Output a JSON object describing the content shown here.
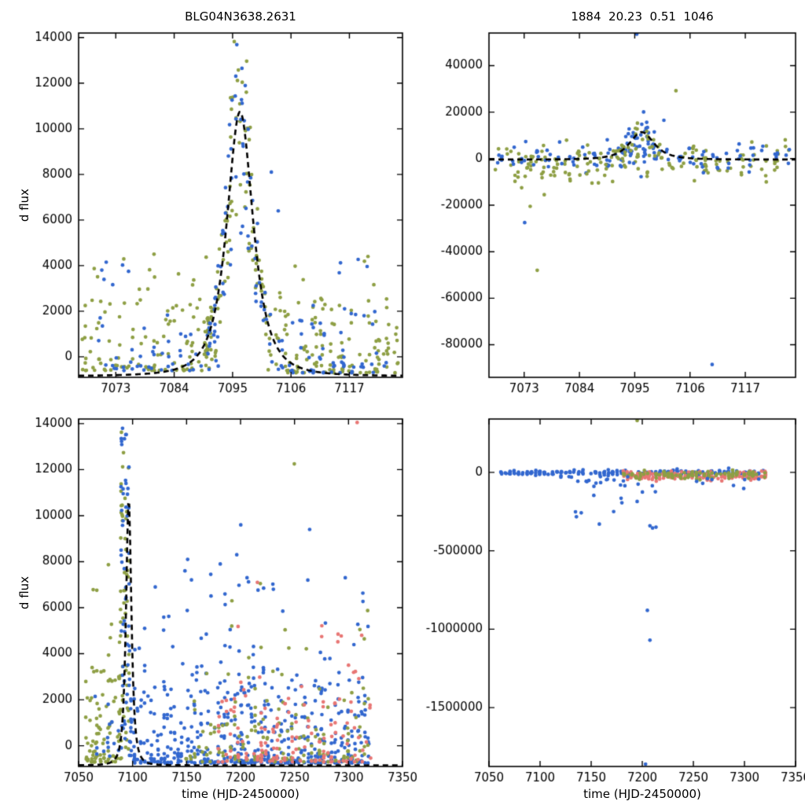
{
  "colors": {
    "green": "#8e9f44",
    "blue": "#3267cf",
    "red": "#e87674",
    "model": "#000000",
    "axis": "#000000",
    "background": "#ffffff"
  },
  "chart_data": [
    {
      "id": "main-zoom",
      "type": "scatter",
      "title": "BLG04N3638.2631",
      "xlabel": "",
      "ylabel": "d flux",
      "xlim": [
        7066,
        7127
      ],
      "ylim": [
        -900,
        14200
      ],
      "xticks": [
        7073,
        7084,
        7095,
        7106,
        7117
      ],
      "yticks": [
        0,
        2000,
        4000,
        6000,
        8000,
        10000,
        12000,
        14000
      ],
      "legend": "none",
      "grid": false,
      "model_curve": {
        "t0": 7096.4,
        "base": -850,
        "amplitude": 11600,
        "gamma": 3.8,
        "power": 1.5,
        "style": "dashed"
      },
      "clusters": [
        {
          "color": "green",
          "n": 110,
          "x": [
            7066.5,
            7092.5
          ],
          "nights": 22,
          "dist": "exp",
          "y": [
            -600,
            2500
          ],
          "k": 2.2
        },
        {
          "color": "green",
          "n": 12,
          "x": [
            7067,
            7091
          ],
          "dist": "uniform",
          "y": [
            2500,
            4600
          ]
        },
        {
          "color": "blue",
          "n": 48,
          "x": [
            7069,
            7092.5
          ],
          "nights": 18,
          "dist": "exp",
          "y": [
            -600,
            2100
          ],
          "k": 2.4
        },
        {
          "color": "blue",
          "n": 5,
          "x": [
            7070,
            7076
          ],
          "dist": "uniform",
          "y": [
            1800,
            4300
          ]
        },
        {
          "color": "green",
          "n": 95,
          "x": [
            7089.5,
            7101.5
          ],
          "nights": 10,
          "dist": "model",
          "s": [
            0.55,
            1.45
          ],
          "noise": 1500
        },
        {
          "color": "blue",
          "n": 72,
          "x": [
            7090,
            7101.5
          ],
          "nights": 9,
          "dist": "model",
          "s": [
            0.5,
            1.4
          ],
          "noise": 1500
        },
        {
          "color": "green",
          "n": 125,
          "x": [
            7101,
            7126.5
          ],
          "nights": 15,
          "dist": "exp",
          "y": [
            -700,
            2500
          ],
          "k": 2.0
        },
        {
          "color": "green",
          "n": 9,
          "x": [
            7102,
            7126
          ],
          "dist": "uniform",
          "y": [
            2500,
            4400
          ]
        },
        {
          "color": "blue",
          "n": 65,
          "x": [
            7101,
            7126.5
          ],
          "nights": 13,
          "dist": "exp",
          "y": [
            -700,
            2400
          ],
          "k": 2.2
        },
        {
          "color": "blue",
          "n": 4,
          "x": [
            7115,
            7124
          ],
          "dist": "uniform",
          "y": [
            3400,
            4600
          ]
        }
      ],
      "points": [
        {
          "color": "blue",
          "pts": [
            [
              7102.3,
              8100
            ],
            [
              7103.6,
              6400
            ],
            [
              7071.2,
              4150
            ]
          ]
        },
        {
          "color": "green",
          "pts": [
            [
              7120.5,
              4400
            ],
            [
              7080.2,
              4500
            ]
          ]
        }
      ]
    },
    {
      "id": "residual-zoom",
      "type": "scatter",
      "title": "1884  20.23  0.51  1046",
      "xlabel": "",
      "ylabel": "",
      "xlim": [
        7066,
        7127
      ],
      "ylim": [
        -94000,
        54000
      ],
      "xticks": [
        7073,
        7084,
        7095,
        7106,
        7117
      ],
      "yticks": [
        -80000,
        -60000,
        -40000,
        -20000,
        0,
        20000,
        40000
      ],
      "legend": "none",
      "grid": false,
      "model_curve": {
        "t0": 7096.4,
        "base": -400,
        "amplitude": 11800,
        "gamma": 3.8,
        "power": 1.5,
        "style": "dashed"
      },
      "clusters": [
        {
          "color": "green",
          "n": 135,
          "x": [
            7066.5,
            7126.5
          ],
          "nights": 26,
          "dist": "gauss",
          "mean": -800,
          "sd": 3200
        },
        {
          "color": "blue",
          "n": 115,
          "x": [
            7067,
            7126.5
          ],
          "nights": 25,
          "dist": "gauss",
          "mean": 200,
          "sd": 2600
        },
        {
          "color": "green",
          "n": 25,
          "x": [
            7069,
            7090
          ],
          "nights": 12,
          "dist": "gauss",
          "mean": -4000,
          "sd": 4500
        },
        {
          "color": "blue",
          "n": 40,
          "x": [
            7091,
            7100.5
          ],
          "nights": 8,
          "dist": "model",
          "s": [
            0.5,
            1.7
          ],
          "noise": 5000
        },
        {
          "color": "green",
          "n": 30,
          "x": [
            7091,
            7100.5
          ],
          "nights": 8,
          "dist": "model",
          "s": [
            0.4,
            1.6
          ],
          "noise": 6000
        }
      ],
      "points": [
        {
          "color": "green",
          "pts": [
            [
              7072.5,
              -12500
            ],
            [
              7074.2,
              -20500
            ],
            [
              7075.6,
              -48000
            ],
            [
              7077.0,
              -15500
            ],
            [
              7086.5,
              -10500
            ],
            [
              7103.2,
              29200
            ]
          ]
        },
        {
          "color": "blue",
          "pts": [
            [
              7073.1,
              -27500
            ],
            [
              7110.4,
              -88500
            ],
            [
              7095.4,
              53500
            ],
            [
              7100.8,
              16500
            ]
          ]
        }
      ]
    },
    {
      "id": "main-full",
      "type": "scatter",
      "title": "",
      "xlabel": "time (HJD-2450000)",
      "ylabel": "d flux",
      "xlim": [
        7050,
        7350
      ],
      "ylim": [
        -900,
        14200
      ],
      "xticks": [
        7050,
        7100,
        7150,
        7200,
        7250,
        7300,
        7350
      ],
      "yticks": [
        0,
        2000,
        4000,
        6000,
        8000,
        10000,
        12000,
        14000
      ],
      "legend": "none",
      "grid": false,
      "model_curve": {
        "t0": 7096.4,
        "base": -850,
        "amplitude": 11600,
        "gamma": 3.8,
        "power": 1.5,
        "style": "dashed"
      },
      "clusters": [
        {
          "color": "green",
          "n": 90,
          "x": [
            7056,
            7090
          ],
          "nights": 20,
          "dist": "exp",
          "y": [
            -700,
            3300
          ],
          "k": 2.0
        },
        {
          "color": "green",
          "n": 8,
          "x": [
            7058,
            7088
          ],
          "dist": "uniform",
          "y": [
            3300,
            8200
          ]
        },
        {
          "color": "blue",
          "n": 14,
          "x": [
            7060,
            7088
          ],
          "nights": 14,
          "dist": "exp",
          "y": [
            -500,
            2600
          ],
          "k": 1.8
        },
        {
          "color": "green",
          "n": 55,
          "x": [
            7088.5,
            7097
          ],
          "nights": 6,
          "dist": "uniform",
          "y": [
            -500,
            14150
          ]
        },
        {
          "color": "blue",
          "n": 55,
          "x": [
            7089,
            7097.5
          ],
          "nights": 6,
          "dist": "uniform",
          "y": [
            -500,
            14150
          ]
        },
        {
          "color": "blue",
          "n": 470,
          "x": [
            7097,
            7320
          ],
          "nights": 72,
          "dist": "exp",
          "y": [
            -750,
            2700
          ],
          "k": 2.3
        },
        {
          "color": "blue",
          "n": 65,
          "x": [
            7100,
            7320
          ],
          "nights": 50,
          "dist": "exp",
          "y": [
            2700,
            7700
          ],
          "k": 2.0
        },
        {
          "color": "green",
          "n": 140,
          "x": [
            7148,
            7320
          ],
          "nights": 46,
          "dist": "exp",
          "y": [
            -700,
            2500
          ],
          "k": 2.2
        },
        {
          "color": "green",
          "n": 14,
          "x": [
            7150,
            7318
          ],
          "dist": "exp",
          "y": [
            2500,
            6900
          ],
          "k": 1.8
        },
        {
          "color": "red",
          "n": 130,
          "x": [
            7178,
            7322
          ],
          "nights": 40,
          "dist": "exp",
          "y": [
            -700,
            2300
          ],
          "k": 2.2
        },
        {
          "color": "red",
          "n": 12,
          "x": [
            7180,
            7320
          ],
          "dist": "exp",
          "y": [
            2300,
            5300
          ],
          "k": 1.8
        }
      ],
      "points": [
        {
          "color": "blue",
          "pts": [
            [
              7200.2,
              9600
            ],
            [
              7196.5,
              8300
            ],
            [
              7264.0,
              9400
            ],
            [
              7262.3,
              7200
            ],
            [
              7151.0,
              8100
            ],
            [
              7148.5,
              7600
            ],
            [
              7121.0,
              6900
            ],
            [
              7181.2,
              7900
            ],
            [
              7206.0,
              7300
            ],
            [
              7230.4,
              6800
            ],
            [
              7297.0,
              7300
            ]
          ]
        },
        {
          "color": "green",
          "pts": [
            [
              7249.8,
              12250
            ],
            [
              7218.3,
              7050
            ],
            [
              7192.0,
              6300
            ],
            [
              7310.5,
              5050
            ]
          ]
        },
        {
          "color": "red",
          "pts": [
            [
              7215.6,
              7100
            ],
            [
              7308.0,
              14050
            ],
            [
              7290.3,
              4850
            ],
            [
              7312.2,
              4800
            ],
            [
              7300.0,
              3500
            ]
          ]
        }
      ]
    },
    {
      "id": "residual-full",
      "type": "scatter",
      "title": "",
      "xlabel": "time (HJD-2450000)",
      "ylabel": "",
      "xlim": [
        7050,
        7350
      ],
      "ylim": [
        -1875000,
        340000
      ],
      "xticks": [
        7050,
        7100,
        7150,
        7200,
        7250,
        7300,
        7350
      ],
      "yticks": [
        -1500000,
        -1000000,
        -500000,
        0
      ],
      "legend": "none",
      "grid": false,
      "model_curve": null,
      "clusters": [
        {
          "color": "blue",
          "n": 210,
          "x": [
            7060,
            7320
          ],
          "nights": 62,
          "dist": "gauss",
          "mean": -3000,
          "sd": 9000
        },
        {
          "color": "red",
          "n": 165,
          "x": [
            7180,
            7322
          ],
          "nights": 40,
          "dist": "gauss",
          "mean": -20000,
          "sd": 15000
        },
        {
          "color": "green",
          "n": 105,
          "x": [
            7180,
            7322
          ],
          "nights": 36,
          "dist": "gauss",
          "mean": -16000,
          "sd": 13000
        },
        {
          "color": "blue",
          "n": 30,
          "x": [
            7128,
            7215
          ],
          "dist": "exp",
          "y": [
            -25000,
            -360000
          ],
          "k": 2.4
        },
        {
          "color": "blue",
          "n": 8,
          "x": [
            7240,
            7316
          ],
          "dist": "exp",
          "y": [
            -40000,
            -130000
          ],
          "k": 1.6
        }
      ],
      "points": [
        {
          "color": "blue",
          "pts": [
            [
              7205.0,
              -880000
            ],
            [
              7207.5,
              -1070000
            ],
            [
              7203.2,
              -1860000
            ],
            [
              7158.0,
              -330000
            ],
            [
              7172.0,
              -250000
            ]
          ]
        },
        {
          "color": "green",
          "pts": [
            [
              7195.0,
              330000
            ]
          ]
        }
      ]
    }
  ]
}
